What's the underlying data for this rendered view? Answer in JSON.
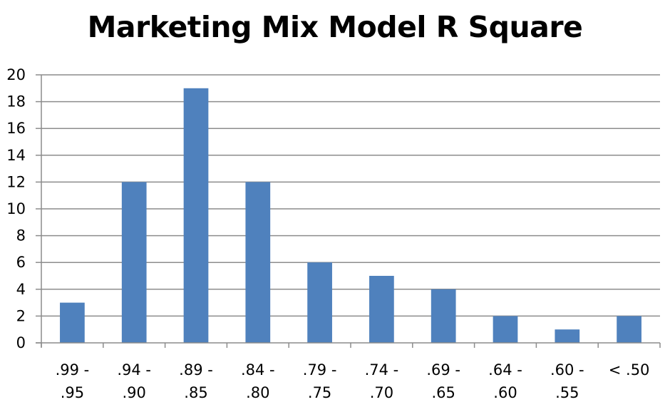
{
  "chart_data": {
    "type": "bar",
    "title": "Marketing Mix Model R Square",
    "xlabel": "",
    "ylabel": "",
    "categories": [
      ".99 - .95",
      ".94 - .90",
      ".89 - .85",
      ".84 - .80",
      ".79 - .75",
      ".74 - .70",
      ".69 - .65",
      ".64 - .60",
      ".60 - .55",
      "< .50"
    ],
    "category_lines": [
      [
        ".99 -",
        ".95"
      ],
      [
        ".94 -",
        ".90"
      ],
      [
        ".89 -",
        ".85"
      ],
      [
        ".84 -",
        ".80"
      ],
      [
        ".79 -",
        ".75"
      ],
      [
        ".74 -",
        ".70"
      ],
      [
        ".69 -",
        ".65"
      ],
      [
        ".64 -",
        ".60"
      ],
      [
        ".60 -",
        ".55"
      ],
      [
        "< .50"
      ]
    ],
    "values": [
      3,
      12,
      19,
      12,
      6,
      5,
      4,
      2,
      1,
      2
    ],
    "ylim": [
      0,
      20
    ],
    "yticks": [
      0,
      2,
      4,
      6,
      8,
      10,
      12,
      14,
      16,
      18,
      20
    ],
    "grid": true,
    "legend": null,
    "colors": {
      "bar": "#4F81BD",
      "grid": "#8C8C8C",
      "text": "#000000"
    }
  }
}
